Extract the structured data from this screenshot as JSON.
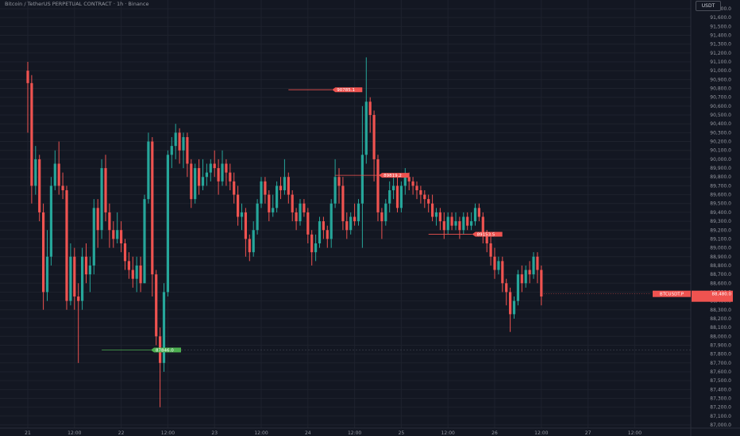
{
  "chart_header": {
    "title": "Bitcoin / TetherUS PERPETUAL CONTRACT · 1h · Binance",
    "unit": "USDT"
  },
  "colors": {
    "background": "#131722",
    "up": "#26a69a",
    "down": "#ef5350",
    "grid": "#1e222d",
    "support": "#4caf50"
  },
  "chart_data": {
    "type": "candlestick",
    "symbol": "BTCUSDT.P",
    "last_price": "88,480.0",
    "last_price_value": 88480,
    "ylim": [
      87000,
      91800
    ],
    "y_ticks": [
      91700,
      91600,
      91500,
      91400,
      91300,
      91200,
      91100,
      91000,
      90900,
      90800,
      90700,
      90600,
      90500,
      90400,
      90300,
      90200,
      90100,
      90000,
      89900,
      89800,
      89700,
      89600,
      89500,
      89400,
      89300,
      89200,
      89100,
      89000,
      88900,
      88800,
      88700,
      88600,
      88500,
      88400,
      88300,
      88200,
      88100,
      88000,
      87900,
      87800,
      87700,
      87600,
      87500,
      87400,
      87300,
      87200,
      87100,
      87000
    ],
    "x_ticks": [
      {
        "label": "21",
        "hours": 0
      },
      {
        "label": "12:00",
        "hours": 12
      },
      {
        "label": "22",
        "hours": 24
      },
      {
        "label": "12:00",
        "hours": 36
      },
      {
        "label": "23",
        "hours": 48
      },
      {
        "label": "12:00",
        "hours": 60
      },
      {
        "label": "24",
        "hours": 72
      },
      {
        "label": "12:00",
        "hours": 84
      },
      {
        "label": "25",
        "hours": 96
      },
      {
        "label": "12:00",
        "hours": 108
      },
      {
        "label": "26",
        "hours": 120
      },
      {
        "label": "12:00",
        "hours": 132
      },
      {
        "label": "27",
        "hours": 144
      },
      {
        "label": "12:00",
        "hours": 156
      }
    ],
    "grid": true,
    "markers": [
      {
        "label": "90785.1",
        "price": 90785.1,
        "from_hours": 67,
        "kind": "high"
      },
      {
        "label": "89819.2",
        "price": 89819.2,
        "from_hours": 79,
        "kind": "high"
      },
      {
        "label": "89153.5",
        "price": 89153.5,
        "from_hours": 103,
        "kind": "high"
      },
      {
        "label": "87846.0",
        "price": 87846.0,
        "from_hours": 19,
        "kind": "low"
      }
    ],
    "candles": [
      [
        91000,
        90860,
        91100,
        90300
      ],
      [
        90860,
        89700,
        90950,
        89500
      ],
      [
        89700,
        90000,
        90150,
        89600
      ],
      [
        90000,
        89400,
        90050,
        89300
      ],
      [
        89400,
        88500,
        89500,
        88300
      ],
      [
        88500,
        88900,
        89200,
        88400
      ],
      [
        88900,
        89700,
        89800,
        88800
      ],
      [
        89700,
        89950,
        90100,
        89650
      ],
      [
        89950,
        89700,
        90200,
        89600
      ],
      [
        89700,
        89650,
        89850,
        89550
      ],
      [
        89650,
        88400,
        89700,
        88300
      ],
      [
        88400,
        88900,
        89050,
        88350
      ],
      [
        88900,
        88450,
        89000,
        88300
      ],
      [
        88450,
        88400,
        88600,
        87700
      ],
      [
        88400,
        88900,
        89000,
        88300
      ],
      [
        88900,
        88700,
        89050,
        88600
      ],
      [
        88700,
        88800,
        88900,
        88500
      ],
      [
        88800,
        89450,
        89550,
        88700
      ],
      [
        89450,
        89200,
        89550,
        89000
      ],
      [
        89200,
        89900,
        90000,
        89100
      ],
      [
        89900,
        89400,
        90050,
        89300
      ],
      [
        89400,
        89200,
        89500,
        89000
      ],
      [
        89200,
        89100,
        89300,
        89000
      ],
      [
        89100,
        89200,
        89400,
        89050
      ],
      [
        89200,
        89050,
        89300,
        88950
      ],
      [
        89050,
        88850,
        89100,
        88750
      ],
      [
        88850,
        88750,
        88950,
        88650
      ],
      [
        88750,
        88650,
        88900,
        88550
      ],
      [
        88650,
        88800,
        88900,
        88500
      ],
      [
        88800,
        88600,
        88900,
        88500
      ],
      [
        88600,
        89550,
        89600,
        88600
      ],
      [
        89550,
        90200,
        90300,
        89500
      ],
      [
        90200,
        88700,
        90250,
        88450
      ],
      [
        88700,
        88000,
        88750,
        87900
      ],
      [
        88000,
        87700,
        88100,
        87200
      ],
      [
        87700,
        88500,
        88600,
        87600
      ],
      [
        88500,
        90050,
        90100,
        88450
      ],
      [
        90050,
        90150,
        90250,
        89900
      ],
      [
        90150,
        90300,
        90400,
        90000
      ],
      [
        90300,
        90100,
        90350,
        89950
      ],
      [
        90100,
        90250,
        90300,
        89900
      ],
      [
        90250,
        89950,
        90300,
        89800
      ],
      [
        89950,
        89550,
        90000,
        89450
      ],
      [
        89550,
        89900,
        89950,
        89500
      ],
      [
        89900,
        89700,
        90000,
        89600
      ],
      [
        89700,
        89800,
        90000,
        89650
      ],
      [
        89800,
        89850,
        89950,
        89700
      ],
      [
        89850,
        89950,
        90000,
        89750
      ],
      [
        89950,
        89900,
        90100,
        89800
      ],
      [
        89900,
        89750,
        90000,
        89600
      ],
      [
        89750,
        89950,
        90100,
        89700
      ],
      [
        89950,
        89850,
        90000,
        89700
      ],
      [
        89850,
        89750,
        89950,
        89650
      ],
      [
        89750,
        89600,
        89850,
        89500
      ],
      [
        89600,
        89350,
        89700,
        89250
      ],
      [
        89350,
        89400,
        89500,
        89200
      ],
      [
        89400,
        89100,
        89450,
        88900
      ],
      [
        89100,
        88950,
        89150,
        88850
      ],
      [
        88950,
        89200,
        89300,
        88900
      ],
      [
        89200,
        89500,
        89550,
        89150
      ],
      [
        89500,
        89750,
        89800,
        89450
      ],
      [
        89750,
        89600,
        89800,
        89500
      ],
      [
        89600,
        89400,
        89650,
        89300
      ],
      [
        89400,
        89450,
        89600,
        89350
      ],
      [
        89450,
        89700,
        89750,
        89400
      ],
      [
        89700,
        89650,
        89800,
        89550
      ],
      [
        89650,
        89800,
        90000,
        89600
      ],
      [
        89800,
        89600,
        89850,
        89500
      ],
      [
        89600,
        89400,
        89650,
        89300
      ],
      [
        89400,
        89300,
        89450,
        89200
      ],
      [
        89300,
        89500,
        89550,
        89250
      ],
      [
        89500,
        89400,
        89550,
        89350
      ],
      [
        89400,
        89150,
        89450,
        89050
      ],
      [
        89150,
        88950,
        89200,
        88800
      ],
      [
        88950,
        89050,
        89150,
        88850
      ],
      [
        89050,
        89300,
        89350,
        89000
      ],
      [
        89300,
        89200,
        89350,
        89100
      ],
      [
        89200,
        89100,
        89250,
        89000
      ],
      [
        89100,
        89500,
        89550,
        89000
      ],
      [
        89500,
        89800,
        90000,
        89450
      ],
      [
        89800,
        89700,
        89900,
        89500
      ],
      [
        89700,
        89300,
        89800,
        89200
      ],
      [
        89300,
        89200,
        89400,
        89100
      ],
      [
        89200,
        89350,
        89400,
        89150
      ],
      [
        89350,
        89300,
        89500,
        89250
      ],
      [
        89300,
        89500,
        89550,
        89250
      ],
      [
        89500,
        90050,
        90600,
        89000
      ],
      [
        90050,
        90650,
        91150,
        89950
      ],
      [
        90650,
        90500,
        90700,
        90300
      ],
      [
        90500,
        90000,
        90550,
        89750
      ],
      [
        90000,
        89400,
        90050,
        89300
      ],
      [
        89400,
        89300,
        89450,
        89100
      ],
      [
        89300,
        89500,
        89550,
        89250
      ],
      [
        89500,
        89650,
        89750,
        89400
      ],
      [
        89650,
        89700,
        89800,
        89550
      ],
      [
        89700,
        89450,
        89800,
        89400
      ],
      [
        89450,
        89700,
        89750,
        89400
      ],
      [
        89700,
        89800,
        89900,
        89600
      ],
      [
        89800,
        89750,
        89850,
        89650
      ],
      [
        89750,
        89700,
        89800,
        89600
      ],
      [
        89700,
        89650,
        89750,
        89550
      ],
      [
        89650,
        89600,
        89700,
        89500
      ],
      [
        89600,
        89550,
        89650,
        89450
      ],
      [
        89550,
        89500,
        89600,
        89400
      ],
      [
        89500,
        89350,
        89600,
        89300
      ],
      [
        89350,
        89400,
        89450,
        89250
      ],
      [
        89400,
        89300,
        89450,
        89200
      ],
      [
        89300,
        89200,
        89400,
        89100
      ],
      [
        89200,
        89350,
        89400,
        89150
      ],
      [
        89350,
        89250,
        89400,
        89200
      ],
      [
        89250,
        89300,
        89400,
        89200
      ],
      [
        89300,
        89200,
        89350,
        89100
      ],
      [
        89200,
        89350,
        89400,
        89150
      ],
      [
        89350,
        89250,
        89400,
        89200
      ],
      [
        89250,
        89300,
        89400,
        89200
      ],
      [
        89300,
        89450,
        89500,
        89250
      ],
      [
        89450,
        89350,
        89500,
        89300
      ],
      [
        89350,
        89150,
        89400,
        89050
      ],
      [
        89150,
        89050,
        89200,
        88950
      ],
      [
        89050,
        88900,
        89150,
        88800
      ],
      [
        88900,
        88750,
        89000,
        88650
      ],
      [
        88750,
        88850,
        88900,
        88700
      ],
      [
        88850,
        88600,
        88900,
        88500
      ],
      [
        88600,
        88500,
        88650,
        88350
      ],
      [
        88500,
        88250,
        88550,
        88050
      ],
      [
        88250,
        88400,
        88450,
        88200
      ],
      [
        88400,
        88700,
        88750,
        88350
      ],
      [
        88700,
        88600,
        88800,
        88500
      ],
      [
        88600,
        88750,
        88800,
        88550
      ],
      [
        88750,
        88700,
        88850,
        88600
      ],
      [
        88700,
        88900,
        88950,
        88650
      ],
      [
        88900,
        88750,
        88950,
        88600
      ],
      [
        88750,
        88450,
        88800,
        88350
      ]
    ]
  }
}
